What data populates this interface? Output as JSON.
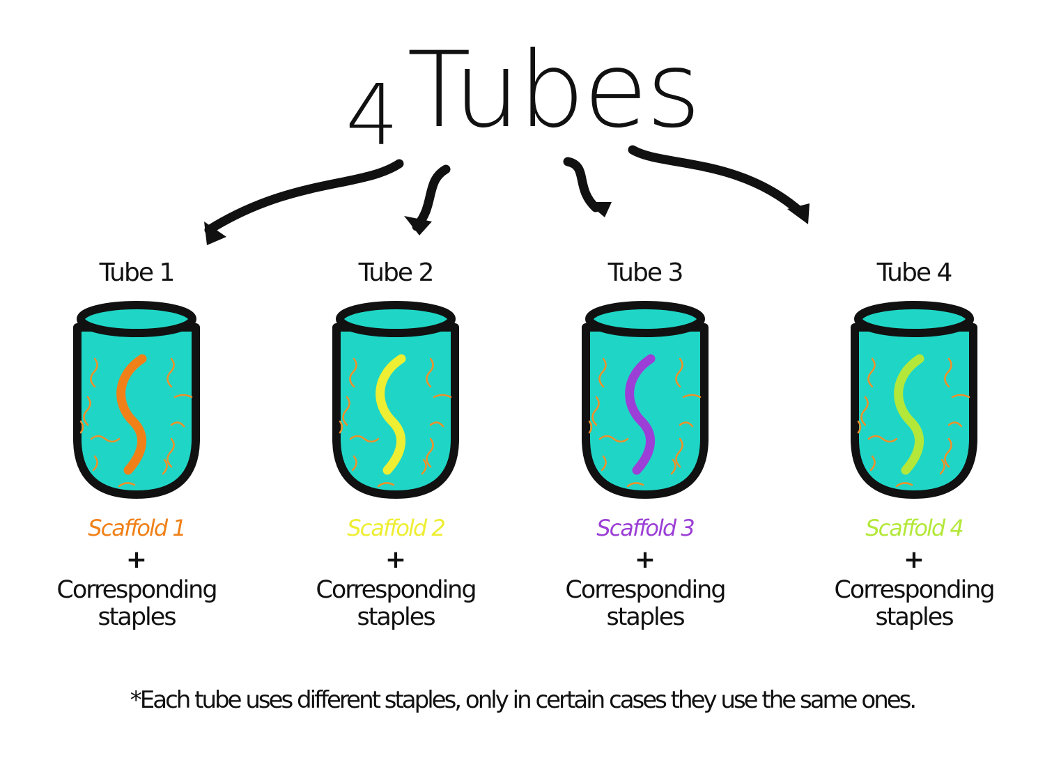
{
  "title": {
    "number": "4",
    "word": "Tubes"
  },
  "tubes": [
    {
      "label": "Tube 1",
      "scaffold": "Scaffold 1",
      "plus": "+",
      "staples_line1": "Corresponding",
      "staples_line2": "staples",
      "color": "#f08018"
    },
    {
      "label": "Tube 2",
      "scaffold": "Scaffold 2",
      "plus": "+",
      "staples_line1": "Corresponding",
      "staples_line2": "staples",
      "color": "#eeee33"
    },
    {
      "label": "Tube 3",
      "scaffold": "Scaffold 3",
      "plus": "+",
      "staples_line1": "Corresponding",
      "staples_line2": "staples",
      "color": "#9b3fd6"
    },
    {
      "label": "Tube 4",
      "scaffold": "Scaffold 4",
      "plus": "+",
      "staples_line1": "Corresponding",
      "staples_line2": "staples",
      "color": "#b3e83a"
    }
  ],
  "footnote": "*Each tube uses different staples, only in certain cases they use the same ones.",
  "colors": {
    "liquid": "#1fd6c6",
    "outline": "#111111",
    "staple_strands": "#f0902a"
  }
}
